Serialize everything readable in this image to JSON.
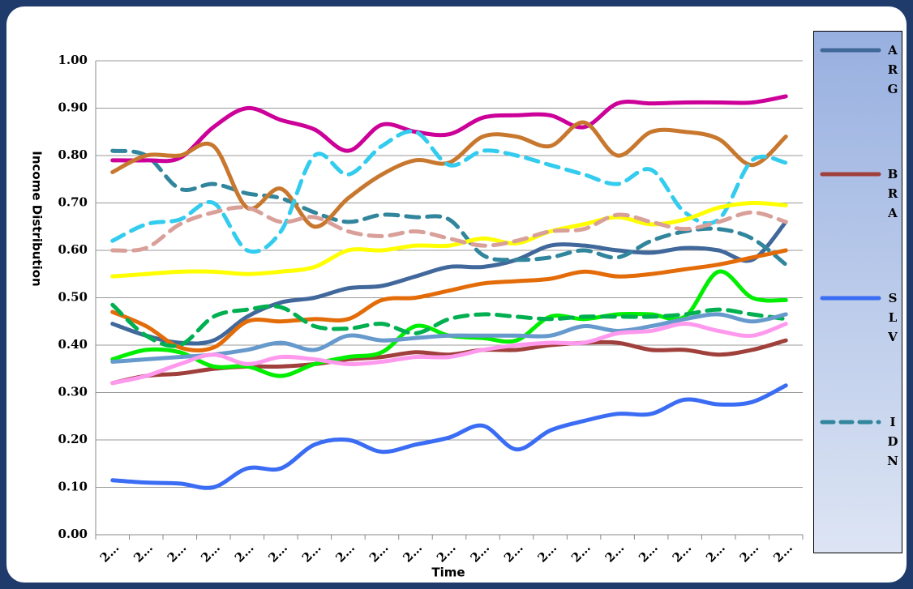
{
  "chart_data": {
    "type": "line",
    "y_label": "Income Distribution",
    "x_label": "Time",
    "categories": [
      "2…",
      "2…",
      "2…",
      "2…",
      "2…",
      "2…",
      "2…",
      "2…",
      "2…",
      "2…",
      "2…",
      "2…",
      "2…",
      "2…",
      "2…",
      "2…",
      "2…",
      "2…",
      "2…",
      "2…",
      "2…"
    ],
    "ylim": [
      0,
      1
    ],
    "yticks": [
      {
        "value": 0,
        "label": "0.00"
      },
      {
        "value": 0.1,
        "label": "0.10"
      },
      {
        "value": 0.2,
        "label": "0.20"
      },
      {
        "value": 0.3,
        "label": "0.30"
      },
      {
        "value": 0.4,
        "label": "0.40"
      },
      {
        "value": 0.5,
        "label": "0.50"
      },
      {
        "value": 0.6,
        "label": "0.60"
      },
      {
        "value": 0.7,
        "label": "0.70"
      },
      {
        "value": 0.8,
        "label": "0.80"
      },
      {
        "value": 0.9,
        "label": "0.90"
      },
      {
        "value": 1,
        "label": "1.00"
      }
    ],
    "grid": true,
    "series": [
      {
        "name": "ARG",
        "color": "#41689b",
        "dash": false,
        "values": [
          0.445,
          0.42,
          0.405,
          0.41,
          0.46,
          0.49,
          0.5,
          0.52,
          0.525,
          0.545,
          0.565,
          0.565,
          0.58,
          0.61,
          0.61,
          0.6,
          0.595,
          0.605,
          0.6,
          0.58,
          0.66
        ]
      },
      {
        "name": "BRA",
        "color": "#a0403c",
        "dash": false,
        "values": [
          0.32,
          0.335,
          0.34,
          0.35,
          0.355,
          0.355,
          0.36,
          0.37,
          0.375,
          0.385,
          0.38,
          0.39,
          0.39,
          0.4,
          0.405,
          0.405,
          0.39,
          0.39,
          0.38,
          0.39,
          0.41
        ]
      },
      {
        "name": "SLV",
        "color": "#3a6cf4",
        "dash": false,
        "values": [
          0.115,
          0.11,
          0.108,
          0.1,
          0.14,
          0.14,
          0.19,
          0.2,
          0.175,
          0.19,
          0.205,
          0.23,
          0.18,
          0.22,
          0.24,
          0.255,
          0.255,
          0.285,
          0.275,
          0.28,
          0.315
        ]
      },
      {
        "name": "IDN",
        "color": "#31859c",
        "dash": true,
        "values": [
          0.81,
          0.8,
          0.73,
          0.74,
          0.72,
          0.71,
          0.68,
          0.66,
          0.675,
          0.67,
          0.665,
          0.59,
          0.58,
          0.585,
          0.6,
          0.585,
          0.62,
          0.64,
          0.645,
          0.625,
          0.57
        ]
      },
      {
        "color": "#cc0099",
        "dash": false,
        "values": [
          0.79,
          0.79,
          0.795,
          0.86,
          0.9,
          0.875,
          0.855,
          0.81,
          0.865,
          0.85,
          0.845,
          0.88,
          0.885,
          0.885,
          0.86,
          0.91,
          0.91,
          0.912,
          0.912,
          0.912,
          0.925
        ]
      },
      {
        "color": "#c8782e",
        "dash": false,
        "values": [
          0.765,
          0.8,
          0.8,
          0.82,
          0.69,
          0.73,
          0.65,
          0.71,
          0.76,
          0.79,
          0.785,
          0.84,
          0.84,
          0.82,
          0.87,
          0.8,
          0.85,
          0.85,
          0.835,
          0.78,
          0.84
        ]
      },
      {
        "color": "#33ccee",
        "dash": true,
        "values": [
          0.62,
          0.655,
          0.665,
          0.7,
          0.6,
          0.64,
          0.8,
          0.76,
          0.82,
          0.85,
          0.78,
          0.81,
          0.8,
          0.78,
          0.76,
          0.74,
          0.77,
          0.68,
          0.665,
          0.79,
          0.785
        ]
      },
      {
        "color": "#ffff00",
        "dash": false,
        "values": [
          0.545,
          0.55,
          0.555,
          0.555,
          0.55,
          0.555,
          0.565,
          0.6,
          0.6,
          0.61,
          0.61,
          0.625,
          0.615,
          0.64,
          0.655,
          0.67,
          0.655,
          0.665,
          0.69,
          0.7,
          0.695
        ]
      },
      {
        "color": "#d9a09a",
        "dash": true,
        "values": [
          0.6,
          0.605,
          0.655,
          0.68,
          0.69,
          0.66,
          0.67,
          0.64,
          0.63,
          0.64,
          0.625,
          0.61,
          0.62,
          0.64,
          0.645,
          0.675,
          0.66,
          0.645,
          0.66,
          0.68,
          0.66
        ]
      },
      {
        "color": "#e36c09",
        "dash": false,
        "values": [
          0.47,
          0.44,
          0.395,
          0.395,
          0.45,
          0.45,
          0.455,
          0.455,
          0.495,
          0.5,
          0.515,
          0.53,
          0.535,
          0.54,
          0.555,
          0.545,
          0.55,
          0.56,
          0.57,
          0.585,
          0.6
        ]
      },
      {
        "color": "#00ee00",
        "dash": false,
        "values": [
          0.37,
          0.39,
          0.385,
          0.355,
          0.355,
          0.335,
          0.36,
          0.375,
          0.385,
          0.44,
          0.42,
          0.415,
          0.41,
          0.46,
          0.455,
          0.465,
          0.465,
          0.46,
          0.555,
          0.5,
          0.495
        ]
      },
      {
        "color": "#00b050",
        "dash": true,
        "values": [
          0.485,
          0.42,
          0.4,
          0.46,
          0.475,
          0.48,
          0.44,
          0.435,
          0.445,
          0.425,
          0.455,
          0.465,
          0.46,
          0.455,
          0.46,
          0.46,
          0.46,
          0.465,
          0.475,
          0.465,
          0.455
        ]
      },
      {
        "color": "#6699cc",
        "dash": false,
        "values": [
          0.365,
          0.37,
          0.375,
          0.38,
          0.39,
          0.405,
          0.39,
          0.42,
          0.41,
          0.415,
          0.42,
          0.42,
          0.42,
          0.42,
          0.44,
          0.43,
          0.44,
          0.455,
          0.465,
          0.45,
          0.465
        ]
      },
      {
        "color": "#ff99ee",
        "dash": false,
        "values": [
          0.32,
          0.335,
          0.36,
          0.38,
          0.36,
          0.375,
          0.37,
          0.36,
          0.365,
          0.375,
          0.375,
          0.39,
          0.4,
          0.405,
          0.405,
          0.425,
          0.43,
          0.445,
          0.43,
          0.42,
          0.445
        ]
      }
    ]
  }
}
